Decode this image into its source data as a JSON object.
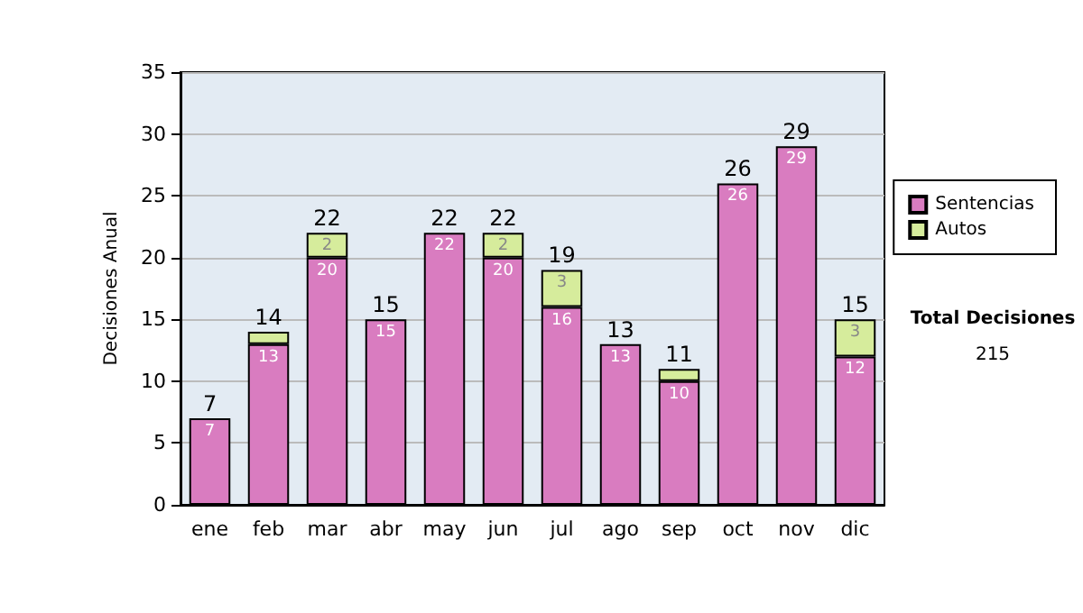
{
  "chart_data": {
    "type": "bar",
    "ylabel": "Decisiones Anual",
    "categories": [
      "ene",
      "feb",
      "mar",
      "abr",
      "may",
      "jun",
      "jul",
      "ago",
      "sep",
      "oct",
      "nov",
      "dic"
    ],
    "series": [
      {
        "name": "Sentencias",
        "color": "#d97cc0",
        "values": [
          7,
          13,
          20,
          15,
          22,
          20,
          16,
          13,
          10,
          26,
          29,
          12
        ],
        "value_labels": [
          "7",
          "13",
          "20",
          "15",
          "22",
          "20",
          "16",
          "13",
          "10",
          "26",
          "29",
          "12"
        ]
      },
      {
        "name": "Autos",
        "color": "#d6ec9c",
        "values": [
          0,
          1,
          2,
          0,
          0,
          2,
          3,
          0,
          1,
          0,
          0,
          3
        ],
        "value_labels": [
          null,
          null,
          "2",
          null,
          null,
          "2",
          "3",
          null,
          null,
          null,
          null,
          "3"
        ]
      }
    ],
    "stacked": true,
    "totals": [
      "7",
      "14",
      "22",
      "15",
      "22",
      "22",
      "19",
      "13",
      "11",
      "26",
      "29",
      "15"
    ],
    "ylim": [
      0,
      35
    ],
    "yticks": [
      0,
      5,
      10,
      15,
      20,
      25,
      30,
      35
    ],
    "grid": "y",
    "legend": "right",
    "annotations": [
      "Total Decisiones",
      "215"
    ]
  }
}
